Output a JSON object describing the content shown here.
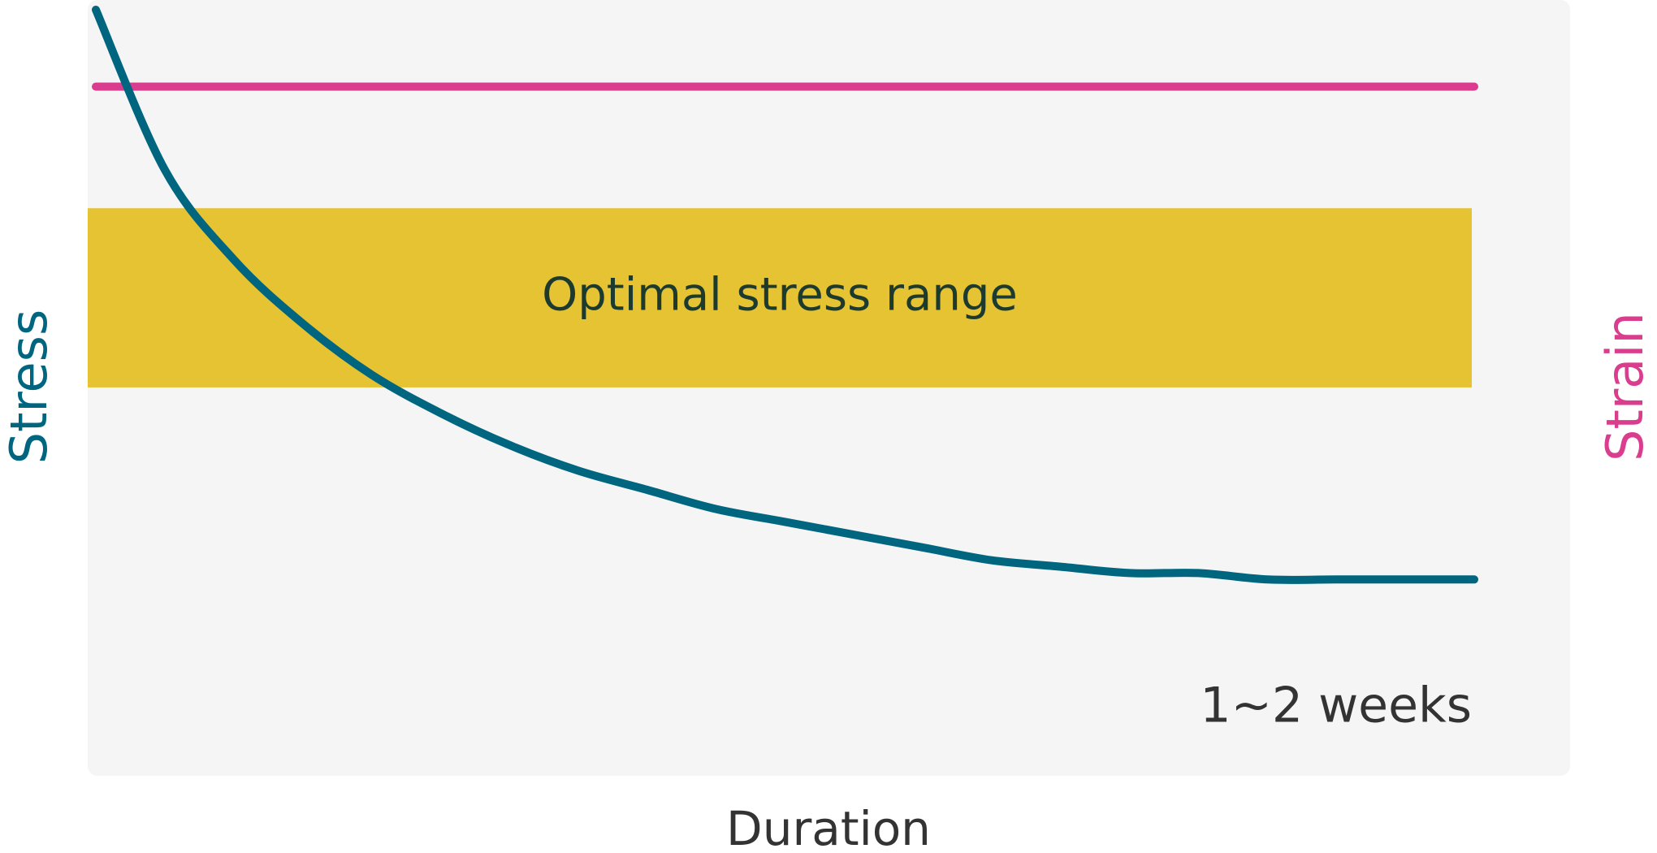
{
  "chart_data": {
    "type": "line",
    "title": "",
    "xlabel": "Duration",
    "ylabel": "Stress",
    "ylabel_right": "Strain",
    "band": {
      "label": "Optimal stress range",
      "y_from": 0.41,
      "y_to": 0.69,
      "color": "#E5C332"
    },
    "annotation": "1~2 weeks",
    "series": [
      {
        "name": "",
        "axis": "left",
        "color": "#006680",
        "x": [
          0.0,
          0.05,
          0.1,
          0.15,
          0.2,
          0.25,
          0.3,
          0.35,
          0.4,
          0.45,
          0.5,
          0.55,
          0.6,
          0.65,
          0.7,
          0.75,
          0.8,
          0.85,
          0.9,
          0.95,
          1.0
        ],
        "y": [
          1.0,
          0.75,
          0.61,
          0.51,
          0.43,
          0.37,
          0.32,
          0.28,
          0.25,
          0.22,
          0.2,
          0.18,
          0.16,
          0.14,
          0.13,
          0.12,
          0.12,
          0.11,
          0.11,
          0.11,
          0.11
        ]
      },
      {
        "name": "",
        "axis": "right",
        "color": "#DA3D8E",
        "x": [
          0.0,
          1.0
        ],
        "y": [
          0.88,
          0.88
        ]
      }
    ],
    "xlim": [
      0,
      1
    ],
    "ylim": [
      0,
      1
    ],
    "grid": false,
    "legend": "none",
    "colors": {
      "panel_background": "#F5F5F6",
      "stress_axis_label": "#006680",
      "strain_axis_label": "#DA3D8E",
      "text": "#333333"
    }
  }
}
